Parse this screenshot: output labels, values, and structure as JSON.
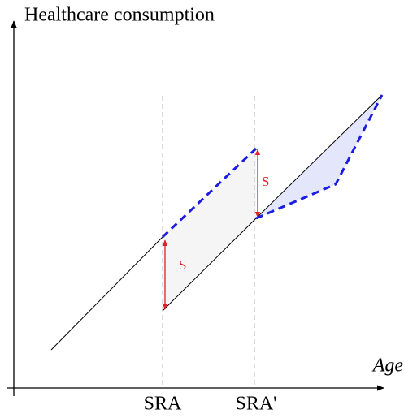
{
  "axes": {
    "y_label": "Healthcare consumption",
    "x_label": "Age"
  },
  "markers": [
    "SRA",
    "SRA'"
  ],
  "shifts": [
    "S",
    "S"
  ]
}
